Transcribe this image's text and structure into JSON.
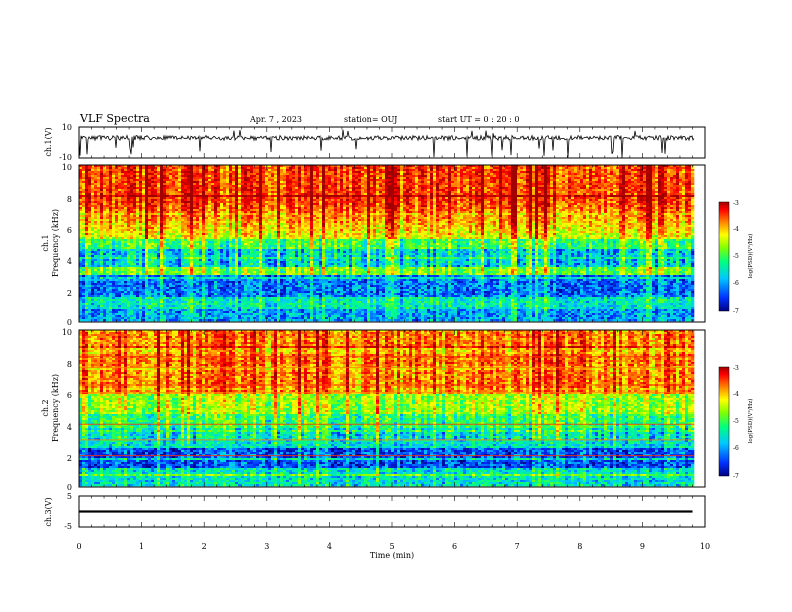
{
  "header": {
    "title": "VLF Spectra",
    "date": "Apr. 7  , 2023",
    "station": "station= OUJ",
    "start_ut": "start  UT =   0  : 20 : 0"
  },
  "chart_data": [
    {
      "type": "line",
      "panel": "ch1-waveform",
      "ylabel": "ch.1(V)",
      "ylim": [
        -10,
        10
      ],
      "yticks": [
        "10",
        "-10"
      ],
      "xlim": [
        0,
        10
      ],
      "baseline": 3,
      "noise_amplitude": 1.5,
      "color": "#000000"
    },
    {
      "type": "heatmap",
      "panel": "ch1-spectrogram",
      "ylabel": "ch.1\nFrequency  (kHz)",
      "ylim": [
        0,
        10
      ],
      "yticks": [
        "0",
        "2",
        "4",
        "6",
        "8",
        "10"
      ],
      "xlim": [
        0,
        10
      ],
      "data_extent_min": 9.83,
      "colorbar": {
        "label": "log(PSD)(V²/Hz)",
        "range": [
          -7,
          -3
        ],
        "ticks": [
          "-3",
          "-4",
          "-5",
          "-6",
          "-7"
        ]
      },
      "profile": "intense 5–10 kHz emission, strong bands near 3.5–4.5 kHz and 1 kHz, weak 1.5–3 kHz"
    },
    {
      "type": "heatmap",
      "panel": "ch2-spectrogram",
      "ylabel": "ch.2\nFrequency  (kHz)",
      "ylim": [
        0,
        10
      ],
      "yticks": [
        "0",
        "2",
        "4",
        "6",
        "8",
        "10"
      ],
      "xlim": [
        0,
        10
      ],
      "data_extent_min": 9.83,
      "colorbar": {
        "label": "log(PSD)(V²/Hz)",
        "range": [
          -7,
          -3
        ],
        "ticks": [
          "-3",
          "-4",
          "-5",
          "-6",
          "-7"
        ]
      },
      "line_bands_khz": [
        8.3,
        7.6,
        6.5,
        6.0,
        4.0,
        3.0,
        2.0
      ],
      "profile": "broadband 6–10 kHz, horizontal interference lines, weak 1.5–3 kHz"
    },
    {
      "type": "line",
      "panel": "ch3-waveform",
      "ylabel": "ch.3(V)",
      "ylim": [
        -5,
        5
      ],
      "yticks": [
        "5",
        "-5"
      ],
      "xlim": [
        0,
        10
      ],
      "baseline": 0,
      "line_width_volts": 0.7,
      "color": "#000000"
    }
  ],
  "x_axis": {
    "label": "Time  (min)",
    "ticks": [
      "0",
      "1",
      "2",
      "3",
      "4",
      "5",
      "6",
      "7",
      "8",
      "9",
      "10"
    ]
  },
  "colormap": [
    "#000080",
    "#0030ff",
    "#00c8ff",
    "#00ff80",
    "#80ff00",
    "#ffff00",
    "#ff8000",
    "#ff0000",
    "#a00000"
  ]
}
